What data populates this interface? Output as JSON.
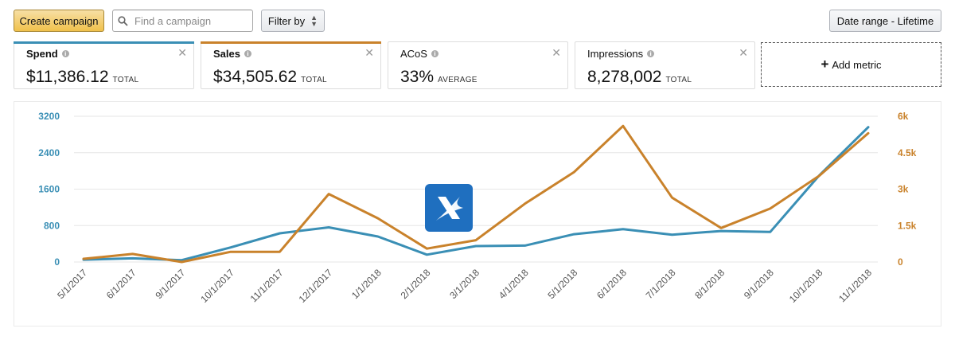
{
  "toolbar": {
    "create_label": "Create campaign",
    "search_placeholder": "Find a campaign",
    "filter_label": "Filter by",
    "date_range_label": "Date range - Lifetime"
  },
  "metrics": [
    {
      "label": "Spend",
      "value": "$11,386.12",
      "suffix": "TOTAL",
      "color": "#3a8fb5",
      "bold": true
    },
    {
      "label": "Sales",
      "value": "$34,505.62",
      "suffix": "TOTAL",
      "color": "#c9822b",
      "bold": true
    },
    {
      "label": "ACoS",
      "value": "33%",
      "suffix": "AVERAGE",
      "color": "",
      "bold": false
    },
    {
      "label": "Impressions",
      "value": "8,278,002",
      "suffix": "TOTAL",
      "color": "",
      "bold": false
    }
  ],
  "add_metric_label": "Add metric",
  "colors": {
    "spend": "#3a8fb5",
    "sales": "#c9822b",
    "grid": "#e6e6e6",
    "logo": "#1f6fbf"
  },
  "chart_data": {
    "type": "line",
    "x": [
      "5/1/2017",
      "6/1/2017",
      "9/1/2017",
      "10/1/2017",
      "11/1/2017",
      "12/1/2017",
      "1/1/2018",
      "2/1/2018",
      "3/1/2018",
      "4/1/2018",
      "5/1/2018",
      "6/1/2018",
      "7/1/2018",
      "8/1/2018",
      "9/1/2018",
      "10/1/2018",
      "11/1/2018"
    ],
    "left_axis": {
      "ticks": [
        "3200",
        "2400",
        "1600",
        "800",
        "0"
      ],
      "ylim": [
        0,
        3200
      ],
      "color": "#3a8fb5"
    },
    "right_axis": {
      "ticks": [
        "6k",
        "4.5k",
        "3k",
        "1.5k",
        "0"
      ],
      "ylim": [
        0,
        6000
      ],
      "color": "#c9822b"
    },
    "series": [
      {
        "name": "Spend",
        "axis": "left",
        "color": "#3a8fb5",
        "values": [
          50,
          80,
          40,
          320,
          630,
          760,
          560,
          160,
          350,
          360,
          610,
          720,
          600,
          680,
          660,
          1900,
          2960
        ]
      },
      {
        "name": "Sales",
        "axis": "right",
        "color": "#c9822b",
        "values": [
          130,
          330,
          0,
          420,
          420,
          2800,
          1800,
          550,
          900,
          2400,
          3700,
          5600,
          2650,
          1400,
          2200,
          3550,
          5300
        ]
      }
    ],
    "grid": true,
    "legend": "none"
  }
}
